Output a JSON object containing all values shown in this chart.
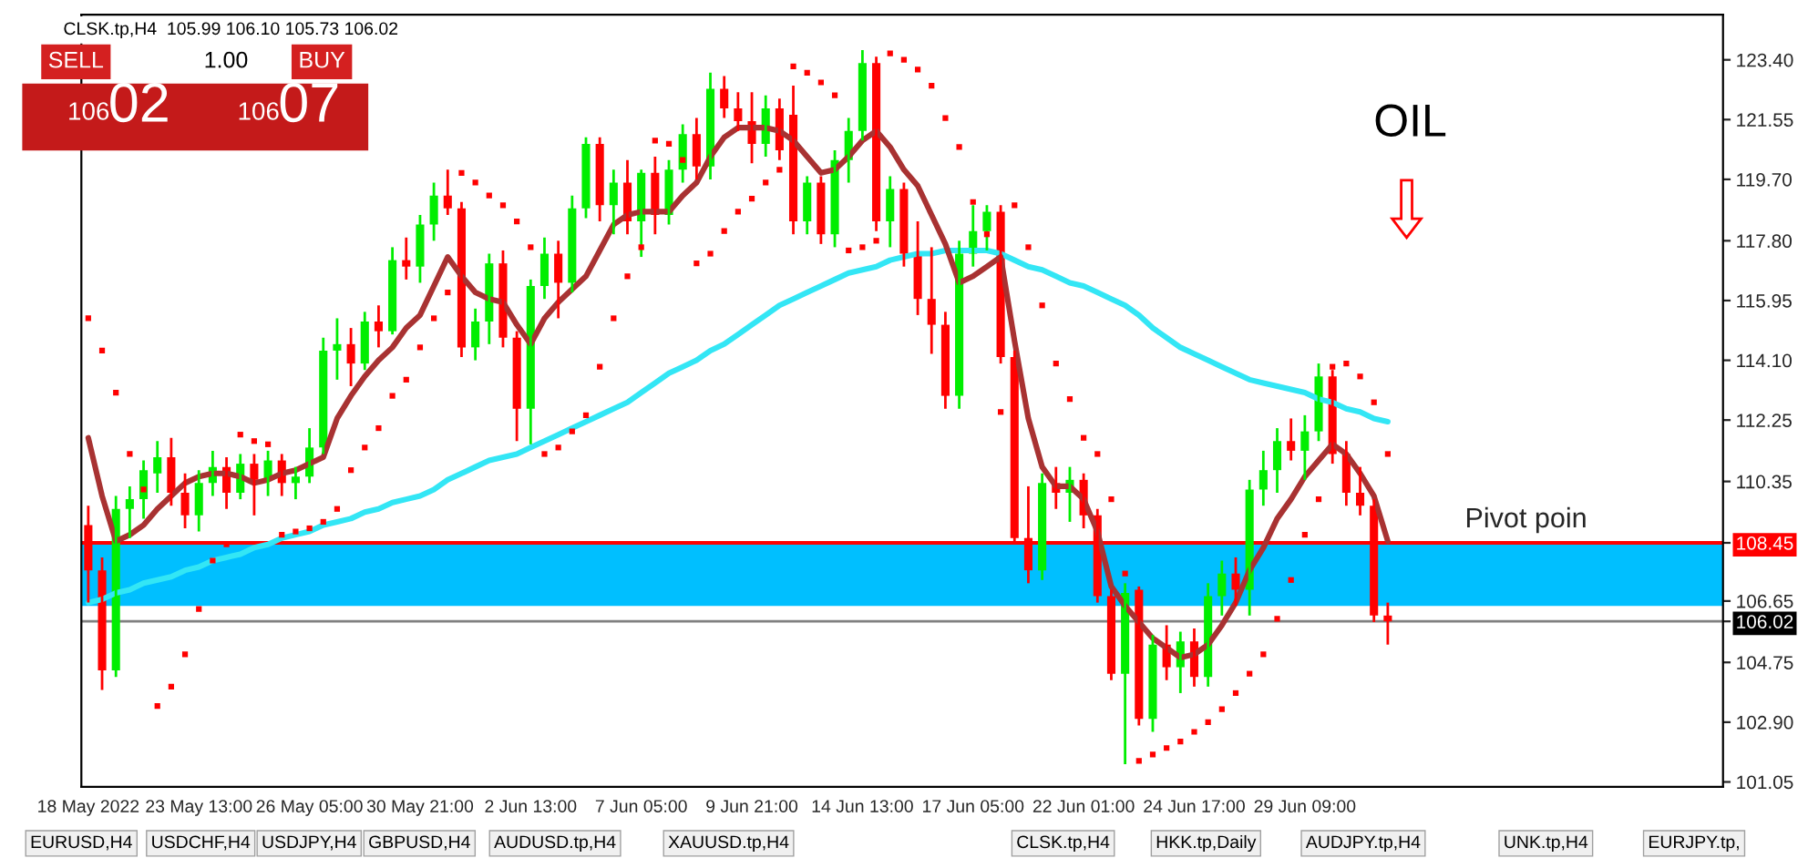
{
  "chart_data": {
    "type": "candlestick",
    "categories": [
      "18 May 2022",
      null,
      null,
      null,
      null,
      null,
      null,
      null,
      "23 May 13:00",
      null,
      null,
      null,
      null,
      null,
      null,
      null,
      "26 May 05:00",
      null,
      null,
      null,
      null,
      null,
      null,
      null,
      "30 May 21:00",
      null,
      null,
      null,
      null,
      null,
      null,
      null,
      "2 Jun 13:00",
      null,
      null,
      null,
      null,
      null,
      null,
      null,
      "7 Jun 05:00",
      null,
      null,
      null,
      null,
      null,
      null,
      null,
      "9 Jun 21:00",
      null,
      null,
      null,
      null,
      null,
      null,
      null,
      "14 Jun 13:00",
      null,
      null,
      null,
      null,
      null,
      null,
      null,
      "17 Jun 05:00",
      null,
      null,
      null,
      null,
      null,
      null,
      null,
      "22 Jun 01:00",
      null,
      null,
      null,
      null,
      null,
      null,
      null,
      "24 Jun 17:00",
      null,
      null,
      null,
      null,
      null,
      null,
      null,
      "29 Jun 09:00",
      null,
      null,
      null,
      null,
      null,
      null
    ],
    "ohlc": [
      [
        109.0,
        109.6,
        106.6,
        107.6
      ],
      [
        107.6,
        108.0,
        103.9,
        104.5
      ],
      [
        104.5,
        109.9,
        104.3,
        109.5
      ],
      [
        109.5,
        110.2,
        108.6,
        109.8
      ],
      [
        109.8,
        111.0,
        109.2,
        110.7
      ],
      [
        110.6,
        111.6,
        110.0,
        111.1
      ],
      [
        111.1,
        111.7,
        109.6,
        110.0
      ],
      [
        110.0,
        110.6,
        108.9,
        109.3
      ],
      [
        109.3,
        110.7,
        108.8,
        110.3
      ],
      [
        110.3,
        111.3,
        109.9,
        110.8
      ],
      [
        110.8,
        111.1,
        109.5,
        110.0
      ],
      [
        110.0,
        111.2,
        109.8,
        110.9
      ],
      [
        110.9,
        111.2,
        109.3,
        110.4
      ],
      [
        110.4,
        111.3,
        109.9,
        111.0
      ],
      [
        111.0,
        111.2,
        109.9,
        110.3
      ],
      [
        110.3,
        110.8,
        109.8,
        110.5
      ],
      [
        110.5,
        112.0,
        110.3,
        111.4
      ],
      [
        111.4,
        114.8,
        111.2,
        114.4
      ],
      [
        114.4,
        115.4,
        113.5,
        114.6
      ],
      [
        114.6,
        115.1,
        113.3,
        114.0
      ],
      [
        114.0,
        115.6,
        113.8,
        115.3
      ],
      [
        115.3,
        115.8,
        114.5,
        115.0
      ],
      [
        115.0,
        117.6,
        114.9,
        117.2
      ],
      [
        117.2,
        117.9,
        116.6,
        117.0
      ],
      [
        117.0,
        118.6,
        116.5,
        118.3
      ],
      [
        118.3,
        119.6,
        117.8,
        119.2
      ],
      [
        119.2,
        120.0,
        118.6,
        118.8
      ],
      [
        118.8,
        119.0,
        114.2,
        114.5
      ],
      [
        114.5,
        115.7,
        114.1,
        115.3
      ],
      [
        115.3,
        117.4,
        114.6,
        117.1
      ],
      [
        117.1,
        117.5,
        114.5,
        114.8
      ],
      [
        114.8,
        115.0,
        111.6,
        112.6
      ],
      [
        112.6,
        116.6,
        111.5,
        116.4
      ],
      [
        116.4,
        117.9,
        116.0,
        117.4
      ],
      [
        117.4,
        117.8,
        115.4,
        116.5
      ],
      [
        116.5,
        119.2,
        116.2,
        118.8
      ],
      [
        118.8,
        121.0,
        118.5,
        120.8
      ],
      [
        120.8,
        121.0,
        118.4,
        118.9
      ],
      [
        118.9,
        120.0,
        118.0,
        119.6
      ],
      [
        119.6,
        120.3,
        118.0,
        118.4
      ],
      [
        118.4,
        120.0,
        117.3,
        119.9
      ],
      [
        119.9,
        120.4,
        118.0,
        118.6
      ],
      [
        118.6,
        120.3,
        118.3,
        120.0
      ],
      [
        120.0,
        121.4,
        119.6,
        121.1
      ],
      [
        121.1,
        121.6,
        119.7,
        120.1
      ],
      [
        120.1,
        123.0,
        119.7,
        122.5
      ],
      [
        122.5,
        122.9,
        121.6,
        121.9
      ],
      [
        121.9,
        122.4,
        121.2,
        121.5
      ],
      [
        121.5,
        122.4,
        120.2,
        120.8
      ],
      [
        120.8,
        122.3,
        120.4,
        121.9
      ],
      [
        121.9,
        122.2,
        120.3,
        120.6
      ],
      [
        121.7,
        122.6,
        118.0,
        118.4
      ],
      [
        118.4,
        119.8,
        118.0,
        119.6
      ],
      [
        119.6,
        119.8,
        117.7,
        118.0
      ],
      [
        118.0,
        120.6,
        117.6,
        120.3
      ],
      [
        120.3,
        121.6,
        119.6,
        121.2
      ],
      [
        121.2,
        123.7,
        120.9,
        123.3
      ],
      [
        123.3,
        123.5,
        118.1,
        118.4
      ],
      [
        118.4,
        119.8,
        117.6,
        119.4
      ],
      [
        119.4,
        119.6,
        117.0,
        117.4
      ],
      [
        117.4,
        118.4,
        115.5,
        116.0
      ],
      [
        116.0,
        117.6,
        114.3,
        115.2
      ],
      [
        115.2,
        115.6,
        112.6,
        113.0
      ],
      [
        113.0,
        117.8,
        112.6,
        117.4
      ],
      [
        117.4,
        118.9,
        117.0,
        118.1
      ],
      [
        118.1,
        118.9,
        117.5,
        118.7
      ],
      [
        118.7,
        118.9,
        114.0,
        114.2
      ],
      [
        114.2,
        114.4,
        108.5,
        108.6
      ],
      [
        108.6,
        110.2,
        107.2,
        107.6
      ],
      [
        107.6,
        110.6,
        107.3,
        110.3
      ],
      [
        110.3,
        110.8,
        109.5,
        110.0
      ],
      [
        110.0,
        110.8,
        109.1,
        110.4
      ],
      [
        110.4,
        110.6,
        108.9,
        109.3
      ],
      [
        109.3,
        109.5,
        106.6,
        106.8
      ],
      [
        106.8,
        107.0,
        104.2,
        104.4
      ],
      [
        104.4,
        107.2,
        101.6,
        106.9
      ],
      [
        107.0,
        107.1,
        102.8,
        103.0
      ],
      [
        103.0,
        105.6,
        102.6,
        105.3
      ],
      [
        105.3,
        105.9,
        104.2,
        104.6
      ],
      [
        104.6,
        105.7,
        103.8,
        105.4
      ],
      [
        105.4,
        105.8,
        104.0,
        104.3
      ],
      [
        104.3,
        107.2,
        104.0,
        106.8
      ],
      [
        106.8,
        107.9,
        106.2,
        107.5
      ],
      [
        107.5,
        108.0,
        106.5,
        107.0
      ],
      [
        107.0,
        110.4,
        106.2,
        110.1
      ],
      [
        110.1,
        111.3,
        109.6,
        110.7
      ],
      [
        110.7,
        112.0,
        110.0,
        111.6
      ],
      [
        111.6,
        112.3,
        111.0,
        111.3
      ],
      [
        111.3,
        112.4,
        110.4,
        111.9
      ],
      [
        111.9,
        114.0,
        111.6,
        113.6
      ],
      [
        113.6,
        113.8,
        110.9,
        111.2
      ],
      [
        111.2,
        111.6,
        109.6,
        110.0
      ],
      [
        110.0,
        110.8,
        109.3,
        109.6
      ],
      [
        109.6,
        109.8,
        106.0,
        106.2
      ],
      [
        106.2,
        106.6,
        105.3,
        106.02
      ]
    ],
    "series": [
      {
        "type": "line",
        "color": "#33e6f5",
        "values": [
          106.6,
          106.7,
          106.9,
          107.0,
          107.2,
          107.3,
          107.4,
          107.6,
          107.7,
          107.9,
          108.0,
          108.1,
          108.3,
          108.4,
          108.6,
          108.7,
          108.8,
          109.0,
          109.1,
          109.2,
          109.4,
          109.5,
          109.7,
          109.8,
          109.9,
          110.1,
          110.4,
          110.6,
          110.8,
          111.0,
          111.1,
          111.2,
          111.4,
          111.6,
          111.8,
          112.0,
          112.2,
          112.4,
          112.6,
          112.8,
          113.1,
          113.4,
          113.7,
          113.9,
          114.1,
          114.4,
          114.6,
          114.9,
          115.2,
          115.5,
          115.8,
          116.0,
          116.2,
          116.4,
          116.6,
          116.8,
          116.9,
          117.0,
          117.2,
          117.3,
          117.4,
          117.4,
          117.5,
          117.5,
          117.5,
          117.5,
          117.4,
          117.2,
          117.0,
          116.9,
          116.7,
          116.5,
          116.4,
          116.2,
          116.0,
          115.8,
          115.5,
          115.1,
          114.8,
          114.5,
          114.3,
          114.1,
          113.9,
          113.7,
          113.5,
          113.4,
          113.3,
          113.2,
          113.1,
          112.9,
          112.8,
          112.6,
          112.5,
          112.3,
          112.2
        ]
      },
      {
        "type": "line",
        "color": "#a83232",
        "values": [
          111.7,
          109.9,
          108.5,
          108.7,
          109.0,
          109.5,
          109.9,
          110.3,
          110.5,
          110.6,
          110.6,
          110.5,
          110.3,
          110.4,
          110.6,
          110.7,
          110.9,
          111.1,
          112.3,
          113.0,
          113.6,
          114.1,
          114.5,
          115.1,
          115.5,
          116.4,
          117.3,
          116.7,
          116.2,
          116.0,
          115.9,
          115.2,
          114.6,
          115.4,
          115.9,
          116.3,
          116.7,
          117.5,
          118.3,
          118.6,
          118.7,
          118.7,
          118.7,
          119.2,
          119.6,
          120.4,
          121.0,
          121.3,
          121.3,
          121.3,
          121.2,
          120.9,
          120.4,
          119.9,
          120.0,
          120.4,
          120.9,
          121.2,
          120.7,
          120.0,
          119.5,
          118.6,
          117.7,
          116.5,
          116.7,
          117.0,
          117.3,
          114.7,
          112.3,
          110.8,
          110.2,
          110.2,
          109.8,
          108.8,
          107.1,
          106.5,
          106.0,
          105.5,
          105.2,
          104.9,
          105.0,
          105.3,
          105.9,
          106.6,
          107.6,
          108.3,
          109.2,
          109.8,
          110.5,
          111.0,
          111.5,
          111.2,
          110.6,
          109.9,
          108.5
        ]
      },
      {
        "type": "scatter",
        "marker": "square",
        "color": "#ff0000",
        "values": [
          115.4,
          114.4,
          113.1,
          111.2,
          110.1,
          103.4,
          104.0,
          105.0,
          106.4,
          107.9,
          108.4,
          111.8,
          111.6,
          111.5,
          108.7,
          108.8,
          108.9,
          109.1,
          109.5,
          110.7,
          111.4,
          112.0,
          113.0,
          113.5,
          114.5,
          115.4,
          116.2,
          119.9,
          119.6,
          119.2,
          118.9,
          118.4,
          117.6,
          111.2,
          111.4,
          111.9,
          112.4,
          113.9,
          115.4,
          116.7,
          117.6,
          120.9,
          120.8,
          120.3,
          117.1,
          117.4,
          118.1,
          118.7,
          119.1,
          119.6,
          120.0,
          123.2,
          123.0,
          122.7,
          122.3,
          117.5,
          117.6,
          117.8,
          123.6,
          123.4,
          123.1,
          122.6,
          121.6,
          120.7,
          119.0,
          118.0,
          112.5,
          118.9,
          117.6,
          115.8,
          114.0,
          112.9,
          111.7,
          111.2,
          109.8,
          107.5,
          101.7,
          101.9,
          102.1,
          102.3,
          102.6,
          102.9,
          103.3,
          103.8,
          104.4,
          105.0,
          106.1,
          107.3,
          108.7,
          109.8,
          113.9,
          114.0,
          113.6,
          112.8,
          111.2
        ]
      }
    ],
    "ylim": [
      100.9,
      124.8
    ],
    "yticks": [
      {
        "value": 101.05,
        "label": "101.05"
      },
      {
        "value": 102.9,
        "label": "102.90"
      },
      {
        "value": 104.75,
        "label": "104.75"
      },
      {
        "value": 106.02,
        "label": "106.02"
      },
      {
        "value": 106.65,
        "label": "106.65"
      },
      {
        "value": 108.45,
        "label": "108.45"
      },
      {
        "value": 110.35,
        "label": "110.35"
      },
      {
        "value": 112.25,
        "label": "112.25"
      },
      {
        "value": 114.1,
        "label": "114.10"
      },
      {
        "value": 115.95,
        "label": "115.95"
      },
      {
        "value": 117.8,
        "label": "117.80"
      },
      {
        "value": 119.7,
        "label": "119.70"
      },
      {
        "value": 121.55,
        "label": "121.55"
      },
      {
        "value": 123.4,
        "label": "123.40"
      }
    ],
    "ref_lines": [
      {
        "axis": "y",
        "value": 108.45,
        "label": "Pivot poin",
        "color": "#ff0000"
      },
      {
        "axis": "y",
        "value": 106.02,
        "color": "#808080"
      }
    ],
    "bands": [
      {
        "axis": "y",
        "from": 106.5,
        "to": 108.45,
        "color": "#00bfff"
      }
    ],
    "annotations": [
      "CLSK.tp,H4  105.99 106.10 105.73 106.02",
      "SELL",
      "1.00",
      "BUY",
      "106",
      "02",
      "106",
      "07",
      "OIL",
      "EURUSD,H4",
      "USDCHF,H4",
      "USDJPY,H4",
      "GBPUSD,H4",
      "AUDUSD.tp,H4",
      "XAUUSD.tp,H4",
      "CLSK.tp,H4",
      "HKK.tp,Daily",
      "AUDJPY.tp,H4",
      "UNK.tp,H4",
      "EURJPY.tp,"
    ],
    "grid": false,
    "legend": false
  }
}
